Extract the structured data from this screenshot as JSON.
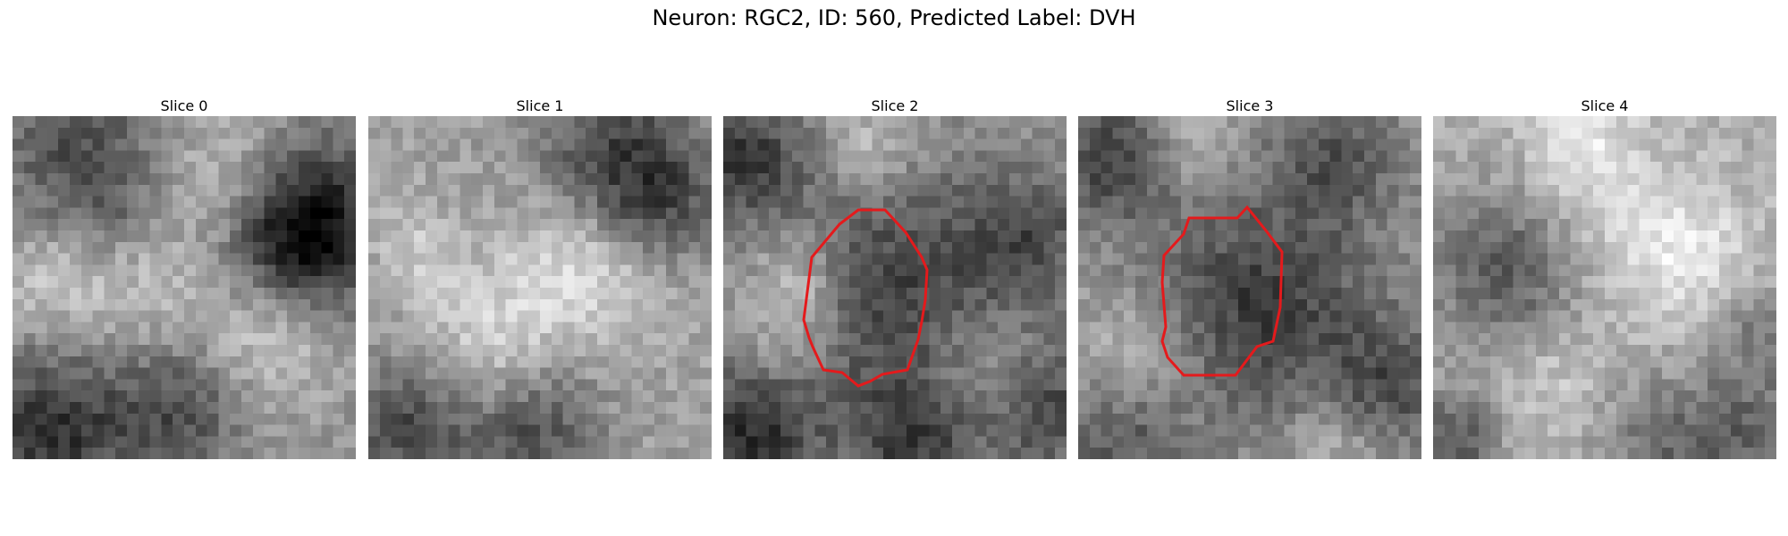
{
  "figure": {
    "title": "Neuron: RGC2, ID: 560, Predicted Label: DVH"
  },
  "panels": [
    {
      "title": "Slice 0",
      "has_outline": false
    },
    {
      "title": "Slice 1",
      "has_outline": false
    },
    {
      "title": "Slice 2",
      "has_outline": true
    },
    {
      "title": "Slice 3",
      "has_outline": true
    },
    {
      "title": "Slice 4",
      "has_outline": false
    }
  ],
  "colors": {
    "outline": "#e41a1c",
    "colormap": "gray"
  }
}
